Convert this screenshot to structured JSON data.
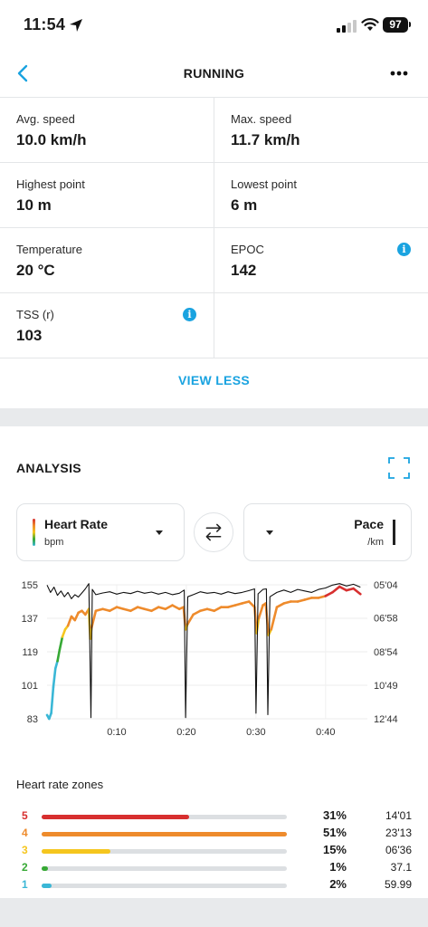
{
  "status_bar": {
    "time": "11:54",
    "battery": "97"
  },
  "nav": {
    "title": "RUNNING"
  },
  "stats": [
    {
      "label": "Avg. speed",
      "value": "10.0 km/h",
      "info": false
    },
    {
      "label": "Max. speed",
      "value": "11.7 km/h",
      "info": false
    },
    {
      "label": "Highest point",
      "value": "10 m",
      "info": false
    },
    {
      "label": "Lowest point",
      "value": "6 m",
      "info": false
    },
    {
      "label": "Temperature",
      "value": "20 °C",
      "info": false
    },
    {
      "label": "EPOC",
      "value": "142",
      "info": true
    },
    {
      "label": "TSS (r)",
      "value": "103",
      "info": true
    }
  ],
  "info_glyph": "i",
  "view_less_label": "VIEW LESS",
  "analysis": {
    "title": "ANALYSIS",
    "left_selector": {
      "title": "Heart Rate",
      "unit": "bpm"
    },
    "right_selector": {
      "title": "Pace",
      "unit": "/km"
    }
  },
  "chart_data": {
    "type": "line",
    "x_ticks": [
      "0:10",
      "0:20",
      "0:30",
      "0:40"
    ],
    "x_tick_minutes": [
      10,
      20,
      30,
      40
    ],
    "x_range_minutes": [
      0,
      46
    ],
    "left_axis": {
      "label": "Heart Rate (bpm)",
      "ticks": [
        155,
        137,
        119,
        101,
        83
      ],
      "ylim": [
        83,
        155
      ]
    },
    "right_axis": {
      "label": "Pace (/km)",
      "ticks": [
        "05'04",
        "06'58",
        "08'54",
        "10'49",
        "12'44"
      ],
      "ticks_seconds": [
        304,
        418,
        534,
        649,
        764
      ]
    },
    "series": [
      {
        "name": "Heart Rate",
        "axis": "left",
        "zone_colors": {
          "1": "#3ab7d6",
          "2": "#37a935",
          "3": "#f5c61e",
          "4": "#ee8b2c",
          "5": "#d72f2f"
        },
        "points": [
          [
            0,
            85
          ],
          [
            0.3,
            83
          ],
          [
            0.6,
            86
          ],
          [
            0.9,
            100
          ],
          [
            1.2,
            110
          ],
          [
            1.5,
            114
          ],
          [
            1.8,
            120
          ],
          [
            2.2,
            127
          ],
          [
            2.6,
            131
          ],
          [
            3.0,
            133
          ],
          [
            3.5,
            138
          ],
          [
            4.0,
            136
          ],
          [
            4.5,
            140
          ],
          [
            5.0,
            141
          ],
          [
            5.5,
            139
          ],
          [
            6.0,
            142
          ],
          [
            6.2,
            126
          ],
          [
            6.4,
            132
          ],
          [
            7,
            141
          ],
          [
            8,
            142
          ],
          [
            9,
            141
          ],
          [
            10,
            143
          ],
          [
            11,
            142
          ],
          [
            12,
            141
          ],
          [
            13,
            143
          ],
          [
            14,
            142
          ],
          [
            15,
            141
          ],
          [
            16,
            143
          ],
          [
            17,
            142
          ],
          [
            18,
            144
          ],
          [
            19,
            142
          ],
          [
            19.6,
            143
          ],
          [
            19.9,
            131
          ],
          [
            20.2,
            134
          ],
          [
            21,
            139
          ],
          [
            22,
            141
          ],
          [
            23,
            142
          ],
          [
            24,
            141
          ],
          [
            25,
            143
          ],
          [
            26,
            143
          ],
          [
            27,
            144
          ],
          [
            28,
            145
          ],
          [
            29,
            146
          ],
          [
            29.8,
            143
          ],
          [
            30.1,
            129
          ],
          [
            30.4,
            137
          ],
          [
            31,
            144
          ],
          [
            31.4,
            145
          ],
          [
            31.8,
            128
          ],
          [
            32.2,
            131
          ],
          [
            33,
            143
          ],
          [
            34,
            145
          ],
          [
            35,
            146
          ],
          [
            36,
            146
          ],
          [
            37,
            147
          ],
          [
            38,
            148
          ],
          [
            39,
            148
          ],
          [
            40,
            149
          ],
          [
            41,
            151
          ],
          [
            42,
            154
          ],
          [
            43,
            152
          ],
          [
            44,
            153
          ],
          [
            45,
            150
          ]
        ]
      },
      {
        "name": "Pace",
        "axis": "right",
        "color": "#111111",
        "points": [
          [
            0,
            305
          ],
          [
            0.5,
            330
          ],
          [
            1.0,
            312
          ],
          [
            1.5,
            340
          ],
          [
            2,
            325
          ],
          [
            2.5,
            345
          ],
          [
            3,
            330
          ],
          [
            3.5,
            352
          ],
          [
            4,
            338
          ],
          [
            4.5,
            346
          ],
          [
            5,
            332
          ],
          [
            5.5,
            318
          ],
          [
            6,
            300
          ],
          [
            6.3,
            760
          ],
          [
            6.5,
            320
          ],
          [
            7,
            338
          ],
          [
            8,
            332
          ],
          [
            9,
            328
          ],
          [
            10,
            336
          ],
          [
            11,
            330
          ],
          [
            12,
            334
          ],
          [
            13,
            326
          ],
          [
            14,
            333
          ],
          [
            15,
            329
          ],
          [
            16,
            336
          ],
          [
            17,
            330
          ],
          [
            18,
            338
          ],
          [
            19,
            333
          ],
          [
            19.7,
            322
          ],
          [
            19.9,
            760
          ],
          [
            20.2,
            345
          ],
          [
            21,
            338
          ],
          [
            22,
            328
          ],
          [
            23,
            333
          ],
          [
            24,
            330
          ],
          [
            25,
            336
          ],
          [
            26,
            328
          ],
          [
            27,
            334
          ],
          [
            28,
            330
          ],
          [
            29,
            324
          ],
          [
            29.8,
            318
          ],
          [
            30,
            745
          ],
          [
            30.3,
            335
          ],
          [
            31,
            320
          ],
          [
            31.5,
            318
          ],
          [
            31.7,
            750
          ],
          [
            32,
            345
          ],
          [
            33,
            330
          ],
          [
            34,
            322
          ],
          [
            35,
            330
          ],
          [
            36,
            320
          ],
          [
            37,
            325
          ],
          [
            38,
            330
          ],
          [
            39,
            320
          ],
          [
            40,
            315
          ],
          [
            41,
            305
          ],
          [
            42,
            300
          ],
          [
            43,
            308
          ],
          [
            44,
            302
          ],
          [
            45,
            312
          ]
        ]
      }
    ]
  },
  "zones": {
    "title": "Heart rate zones",
    "items": [
      {
        "zone": "5",
        "color": "#d72f2f",
        "fraction": 0.6,
        "percent": "31%",
        "time": "14'01"
      },
      {
        "zone": "4",
        "color": "#ee8b2c",
        "fraction": 1.0,
        "percent": "51%",
        "time": "23'13"
      },
      {
        "zone": "3",
        "color": "#f5c61e",
        "fraction": 0.28,
        "percent": "15%",
        "time": "06'36"
      },
      {
        "zone": "2",
        "color": "#37a935",
        "fraction": 0.025,
        "percent": "1%",
        "time": "37.1"
      },
      {
        "zone": "1",
        "color": "#3ab7d6",
        "fraction": 0.04,
        "percent": "2%",
        "time": "59.99"
      }
    ]
  },
  "colors": {
    "accent": "#1aa3e0",
    "divider": "#e4e6e8"
  }
}
